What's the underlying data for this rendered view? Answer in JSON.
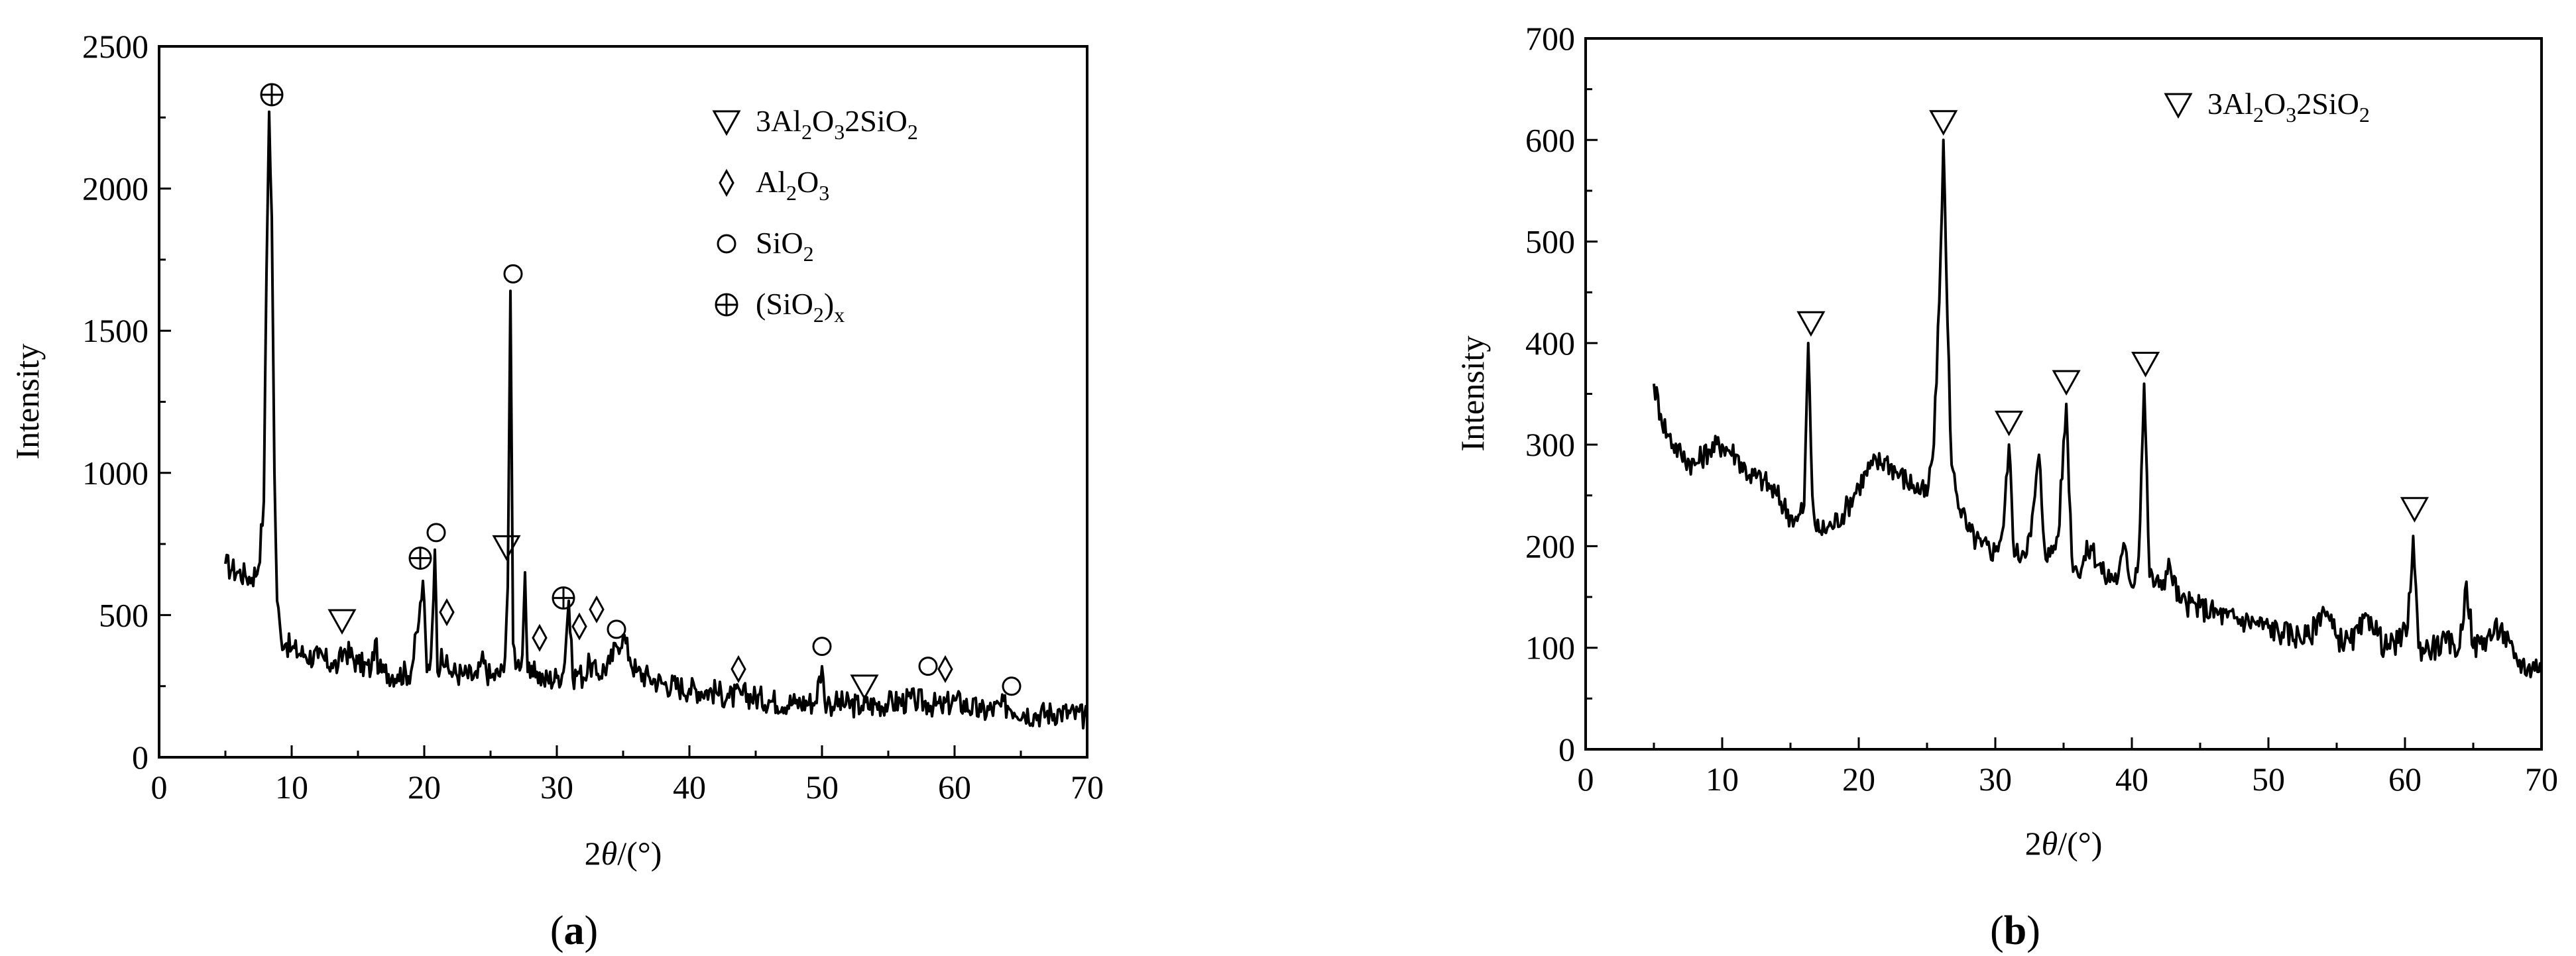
{
  "chart_data": [
    {
      "id": "a",
      "type": "line",
      "caption": {
        "open": "(",
        "letter": "a",
        "close": ")"
      },
      "xlabel": {
        "main": "2",
        "theta": "θ",
        "unit": "/(°)"
      },
      "ylabel": "Intensity",
      "xlim": [
        0,
        70
      ],
      "ylim": [
        0,
        2500
      ],
      "xticks": [
        0,
        10,
        20,
        30,
        40,
        50,
        60,
        70
      ],
      "yticks": [
        0,
        500,
        1000,
        1500,
        2000,
        2500
      ],
      "color": "#000000",
      "series": [
        {
          "x": [
            5,
            5.5,
            6,
            6.5,
            7,
            7.5,
            7.9,
            8.1,
            8.3,
            8.5,
            8.7,
            8.9,
            9.2,
            9.6,
            10,
            11,
            12,
            13,
            13.5,
            14,
            15,
            16,
            16.3,
            16.6,
            17,
            18,
            19,
            19.6,
            19.9,
            20.2,
            20.5,
            20.8,
            21,
            21.3,
            21.6,
            22,
            23,
            24,
            24.3,
            25,
            26,
            26.3,
            26.5,
            26.7,
            27,
            27.4,
            27.6,
            27.8,
            28,
            28.5,
            29,
            30,
            30.5,
            30.9,
            31.2,
            31.6,
            32,
            32.5,
            33,
            34,
            34.5,
            35,
            35.5,
            36,
            37,
            38,
            40,
            42,
            43,
            44,
            46,
            48,
            49.5,
            50,
            50.2,
            50.6,
            51,
            53,
            55,
            57,
            58,
            59,
            60,
            62,
            64,
            66,
            68,
            70
          ],
          "y": [
            680,
            660,
            650,
            640,
            630,
            670,
            900,
            1700,
            2270,
            1900,
            1000,
            550,
            420,
            400,
            380,
            360,
            350,
            330,
            320,
            380,
            330,
            310,
            410,
            300,
            300,
            290,
            300,
            480,
            620,
            300,
            350,
            730,
            300,
            380,
            320,
            300,
            290,
            280,
            340,
            280,
            300,
            600,
            1640,
            400,
            320,
            360,
            650,
            300,
            280,
            300,
            270,
            280,
            300,
            550,
            280,
            300,
            280,
            330,
            290,
            330,
            390,
            430,
            350,
            300,
            280,
            260,
            240,
            230,
            210,
            220,
            200,
            190,
            195,
            320,
            200,
            190,
            190,
            180,
            190,
            200,
            190,
            175,
            200,
            160,
            180,
            150,
            160,
            140
          ]
        }
      ],
      "legend": {
        "placement": "top-right",
        "entries": [
          {
            "symbol": "triangle",
            "parts": [
              "3Al",
              "2",
              "O",
              "3",
              "2SiO",
              "2"
            ]
          },
          {
            "symbol": "diamond",
            "parts": [
              "Al",
              "2",
              "O",
              "3"
            ]
          },
          {
            "symbol": "circle",
            "parts": [
              "SiO",
              "2"
            ]
          },
          {
            "symbol": "circled-plus",
            "parts": [
              "(SiO",
              "2",
              ")",
              "x"
            ]
          }
        ]
      },
      "annotations": [
        {
          "symbol": "circled-plus",
          "x": 8.5,
          "y": 2330
        },
        {
          "symbol": "triangle",
          "x": 13.8,
          "y": 480
        },
        {
          "symbol": "circled-plus",
          "x": 19.7,
          "y": 700
        },
        {
          "symbol": "circle",
          "x": 20.9,
          "y": 790
        },
        {
          "symbol": "diamond",
          "x": 21.7,
          "y": 510
        },
        {
          "symbol": "triangle",
          "x": 26.2,
          "y": 740
        },
        {
          "symbol": "circle",
          "x": 26.7,
          "y": 1700
        },
        {
          "symbol": "diamond",
          "x": 28.7,
          "y": 420
        },
        {
          "symbol": "circled-plus",
          "x": 30.5,
          "y": 560
        },
        {
          "symbol": "diamond",
          "x": 31.7,
          "y": 460
        },
        {
          "symbol": "diamond",
          "x": 33.0,
          "y": 520
        },
        {
          "symbol": "circle",
          "x": 34.5,
          "y": 450
        },
        {
          "symbol": "diamond",
          "x": 43.7,
          "y": 310
        },
        {
          "symbol": "circle",
          "x": 50.0,
          "y": 390
        },
        {
          "symbol": "triangle",
          "x": 53.2,
          "y": 250
        },
        {
          "symbol": "circle",
          "x": 58.0,
          "y": 320
        },
        {
          "symbol": "diamond",
          "x": 59.3,
          "y": 310
        },
        {
          "symbol": "circle",
          "x": 64.3,
          "y": 250
        }
      ]
    },
    {
      "id": "b",
      "type": "line",
      "caption": {
        "open": "(",
        "letter": "b",
        "close": ")"
      },
      "xlabel": {
        "main": "2",
        "theta": "θ",
        "unit": "/(°)"
      },
      "ylabel": "Intensity",
      "xlim": [
        0,
        70
      ],
      "ylim": [
        0,
        700
      ],
      "xticks": [
        0,
        10,
        20,
        30,
        40,
        50,
        60,
        70
      ],
      "yticks": [
        0,
        100,
        200,
        300,
        400,
        500,
        600,
        700
      ],
      "color": "#000000",
      "series": [
        {
          "x": [
            5,
            5.5,
            6,
            7,
            8,
            9,
            10,
            11,
            12,
            13,
            14,
            15,
            15.5,
            16,
            16.3,
            16.6,
            16.9,
            17.2,
            18,
            19,
            20,
            21,
            22,
            23,
            24,
            25,
            25.5,
            25.9,
            26.2,
            26.5,
            26.8,
            27.2,
            28,
            29,
            30,
            30.6,
            31,
            31.4,
            32,
            32.6,
            33.2,
            33.6,
            34,
            34.6,
            35.2,
            35.6,
            36,
            37,
            38,
            39,
            39.5,
            40,
            40.5,
            40.9,
            41.3,
            42,
            42.8,
            43.5,
            45,
            47,
            49,
            51,
            53,
            54,
            55,
            56,
            57.5,
            58.5,
            59.5,
            60.2,
            60.6,
            61,
            62,
            63,
            64,
            64.5,
            65,
            66,
            67,
            68,
            69,
            70
          ],
          "y": [
            360,
            330,
            310,
            290,
            280,
            295,
            300,
            290,
            270,
            265,
            250,
            230,
            225,
            240,
            400,
            250,
            215,
            215,
            220,
            235,
            260,
            280,
            285,
            270,
            260,
            250,
            300,
            440,
            600,
            420,
            280,
            250,
            215,
            200,
            195,
            220,
            300,
            190,
            195,
            210,
            290,
            200,
            190,
            210,
            340,
            190,
            175,
            200,
            170,
            170,
            200,
            160,
            190,
            360,
            170,
            160,
            180,
            145,
            140,
            130,
            125,
            115,
            110,
            140,
            110,
            105,
            130,
            100,
            105,
            120,
            210,
            100,
            100,
            105,
            100,
            165,
            100,
            110,
            120,
            90,
            80,
            85
          ]
        }
      ],
      "legend": {
        "placement": "top-right",
        "entries": [
          {
            "symbol": "triangle",
            "parts": [
              "3Al",
              "2",
              "O",
              "3",
              "2SiO",
              "2"
            ]
          }
        ]
      },
      "annotations": [
        {
          "symbol": "triangle",
          "x": 16.5,
          "y": 420
        },
        {
          "symbol": "triangle",
          "x": 26.2,
          "y": 618
        },
        {
          "symbol": "triangle",
          "x": 31.0,
          "y": 322
        },
        {
          "symbol": "triangle",
          "x": 35.2,
          "y": 362
        },
        {
          "symbol": "triangle",
          "x": 41.0,
          "y": 380
        },
        {
          "symbol": "triangle",
          "x": 60.7,
          "y": 237
        }
      ]
    }
  ]
}
